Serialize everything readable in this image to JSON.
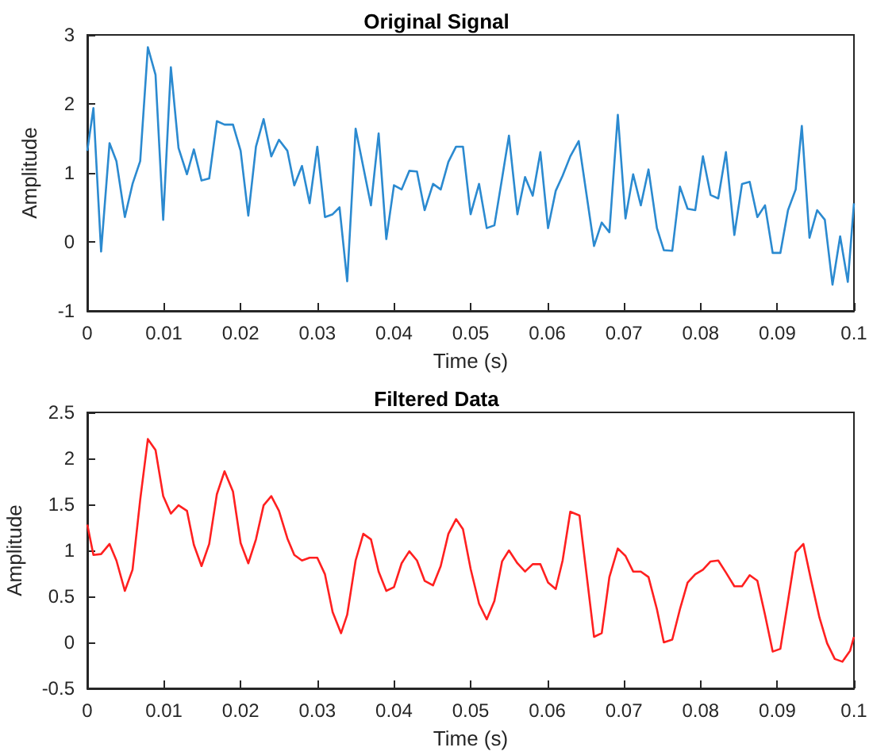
{
  "chart_data": [
    {
      "type": "line",
      "title": "Original Signal",
      "xlabel": "Time (s)",
      "ylabel": "Amplitude",
      "xlim": [
        0,
        0.1
      ],
      "xticks": [
        0,
        0.01,
        0.02,
        0.03,
        0.04,
        0.05,
        0.06,
        0.07,
        0.08,
        0.09,
        0.1
      ],
      "ylim": [
        -1,
        3
      ],
      "yticks": [
        -1,
        0,
        1,
        2,
        3
      ],
      "grid": false,
      "marker": "none",
      "line_style": "solid",
      "series": [
        {
          "color": "#2b8ad0",
          "x": [
            0,
            0.0008,
            0.0018,
            0.0029,
            0.0038,
            0.0049,
            0.0059,
            0.0069,
            0.0079,
            0.0089,
            0.0099,
            0.0109,
            0.0119,
            0.013,
            0.0139,
            0.0149,
            0.0159,
            0.0169,
            0.0179,
            0.019,
            0.02,
            0.021,
            0.022,
            0.023,
            0.024,
            0.025,
            0.0261,
            0.027,
            0.028,
            0.029,
            0.03,
            0.031,
            0.032,
            0.0329,
            0.0339,
            0.035,
            0.037,
            0.038,
            0.039,
            0.04,
            0.041,
            0.042,
            0.043,
            0.044,
            0.0451,
            0.0461,
            0.0471,
            0.0481,
            0.049,
            0.05,
            0.0511,
            0.0521,
            0.0531,
            0.0541,
            0.055,
            0.0561,
            0.0571,
            0.0581,
            0.0591,
            0.0601,
            0.0611,
            0.062,
            0.063,
            0.0641,
            0.0661,
            0.0671,
            0.0681,
            0.0692,
            0.0702,
            0.0712,
            0.0722,
            0.0732,
            0.0743,
            0.0752,
            0.0763,
            0.0773,
            0.0783,
            0.0793,
            0.0803,
            0.0813,
            0.0823,
            0.0833,
            0.0844,
            0.0854,
            0.0864,
            0.0874,
            0.0884,
            0.0894,
            0.0904,
            0.0914,
            0.0924,
            0.0932,
            0.0942,
            0.0952,
            0.0962,
            0.0972,
            0.0982,
            0.0992,
            0.1
          ],
          "values": [
            1.32,
            1.94,
            -0.14,
            1.43,
            1.17,
            0.36,
            0.84,
            1.17,
            2.82,
            2.42,
            0.32,
            2.53,
            1.36,
            0.98,
            1.34,
            0.89,
            0.92,
            1.75,
            1.7,
            1.7,
            1.32,
            0.38,
            1.38,
            1.78,
            1.24,
            1.48,
            1.32,
            0.82,
            1.1,
            0.56,
            1.38,
            0.36,
            0.4,
            0.5,
            -0.57,
            1.64,
            0.53,
            1.57,
            0.04,
            0.82,
            0.76,
            1.03,
            1.02,
            0.46,
            0.84,
            0.76,
            1.16,
            1.38,
            1.38,
            0.4,
            0.84,
            0.2,
            0.24,
            0.92,
            1.54,
            0.4,
            0.94,
            0.67,
            1.3,
            0.2,
            0.74,
            0.96,
            1.24,
            1.46,
            -0.06,
            0.28,
            0.14,
            1.84,
            0.34,
            0.98,
            0.53,
            1.05,
            0.2,
            -0.12,
            -0.13,
            0.8,
            0.48,
            0.46,
            1.24,
            0.68,
            0.63,
            1.3,
            0.1,
            0.84,
            0.87,
            0.36,
            0.53,
            -0.16,
            -0.16,
            0.46,
            0.76,
            1.68,
            0.06,
            0.46,
            0.32,
            -0.62,
            0.08,
            -0.58,
            0.56
          ]
        }
      ]
    },
    {
      "type": "line",
      "title": "Filtered Data",
      "xlabel": "Time (s)",
      "ylabel": "Amplitude",
      "xlim": [
        0,
        0.1
      ],
      "xticks": [
        0,
        0.01,
        0.02,
        0.03,
        0.04,
        0.05,
        0.06,
        0.07,
        0.08,
        0.09,
        0.1
      ],
      "ylim": [
        -0.5,
        2.5
      ],
      "yticks": [
        -0.5,
        0,
        0.5,
        1,
        1.5,
        2,
        2.5
      ],
      "grid": false,
      "marker": "none",
      "line_style": "solid",
      "series": [
        {
          "color": "#ff2020",
          "x": [
            0,
            0.0008,
            0.0018,
            0.0029,
            0.0038,
            0.0049,
            0.0059,
            0.0069,
            0.0079,
            0.0089,
            0.0099,
            0.0109,
            0.0119,
            0.013,
            0.0139,
            0.0149,
            0.0159,
            0.0169,
            0.0179,
            0.019,
            0.02,
            0.021,
            0.022,
            0.023,
            0.024,
            0.025,
            0.0261,
            0.027,
            0.028,
            0.029,
            0.03,
            0.031,
            0.032,
            0.0331,
            0.0339,
            0.035,
            0.036,
            0.037,
            0.038,
            0.039,
            0.04,
            0.041,
            0.042,
            0.043,
            0.044,
            0.0451,
            0.0461,
            0.0471,
            0.0481,
            0.049,
            0.05,
            0.0511,
            0.0521,
            0.0531,
            0.0541,
            0.055,
            0.0561,
            0.0571,
            0.0581,
            0.0591,
            0.0601,
            0.0611,
            0.062,
            0.063,
            0.0642,
            0.0661,
            0.0671,
            0.0681,
            0.0692,
            0.0702,
            0.0712,
            0.0722,
            0.0732,
            0.0743,
            0.0752,
            0.0763,
            0.0773,
            0.0783,
            0.0793,
            0.0803,
            0.0813,
            0.0823,
            0.0833,
            0.0844,
            0.0854,
            0.0864,
            0.0874,
            0.0884,
            0.0894,
            0.0904,
            0.0914,
            0.0924,
            0.0934,
            0.0944,
            0.0955,
            0.0965,
            0.0975,
            0.0985,
            0.0995,
            0.1
          ],
          "values": [
            1.28,
            0.95,
            0.96,
            1.07,
            0.89,
            0.56,
            0.79,
            1.55,
            2.21,
            2.09,
            1.59,
            1.4,
            1.49,
            1.43,
            1.06,
            0.83,
            1.07,
            1.61,
            1.86,
            1.64,
            1.08,
            0.86,
            1.12,
            1.49,
            1.59,
            1.43,
            1.13,
            0.95,
            0.89,
            0.92,
            0.92,
            0.74,
            0.33,
            0.1,
            0.3,
            0.89,
            1.18,
            1.12,
            0.77,
            0.56,
            0.6,
            0.86,
            0.99,
            0.89,
            0.67,
            0.62,
            0.83,
            1.18,
            1.34,
            1.23,
            0.8,
            0.42,
            0.25,
            0.45,
            0.88,
            1.0,
            0.86,
            0.77,
            0.85,
            0.85,
            0.65,
            0.58,
            0.89,
            1.42,
            1.38,
            0.06,
            0.1,
            0.71,
            1.02,
            0.94,
            0.77,
            0.77,
            0.71,
            0.36,
            0.0,
            0.03,
            0.36,
            0.65,
            0.74,
            0.79,
            0.88,
            0.89,
            0.76,
            0.61,
            0.61,
            0.73,
            0.67,
            0.3,
            -0.1,
            -0.07,
            0.45,
            0.98,
            1.07,
            0.68,
            0.27,
            -0.01,
            -0.18,
            -0.21,
            -0.09,
            0.06
          ]
        }
      ]
    }
  ]
}
